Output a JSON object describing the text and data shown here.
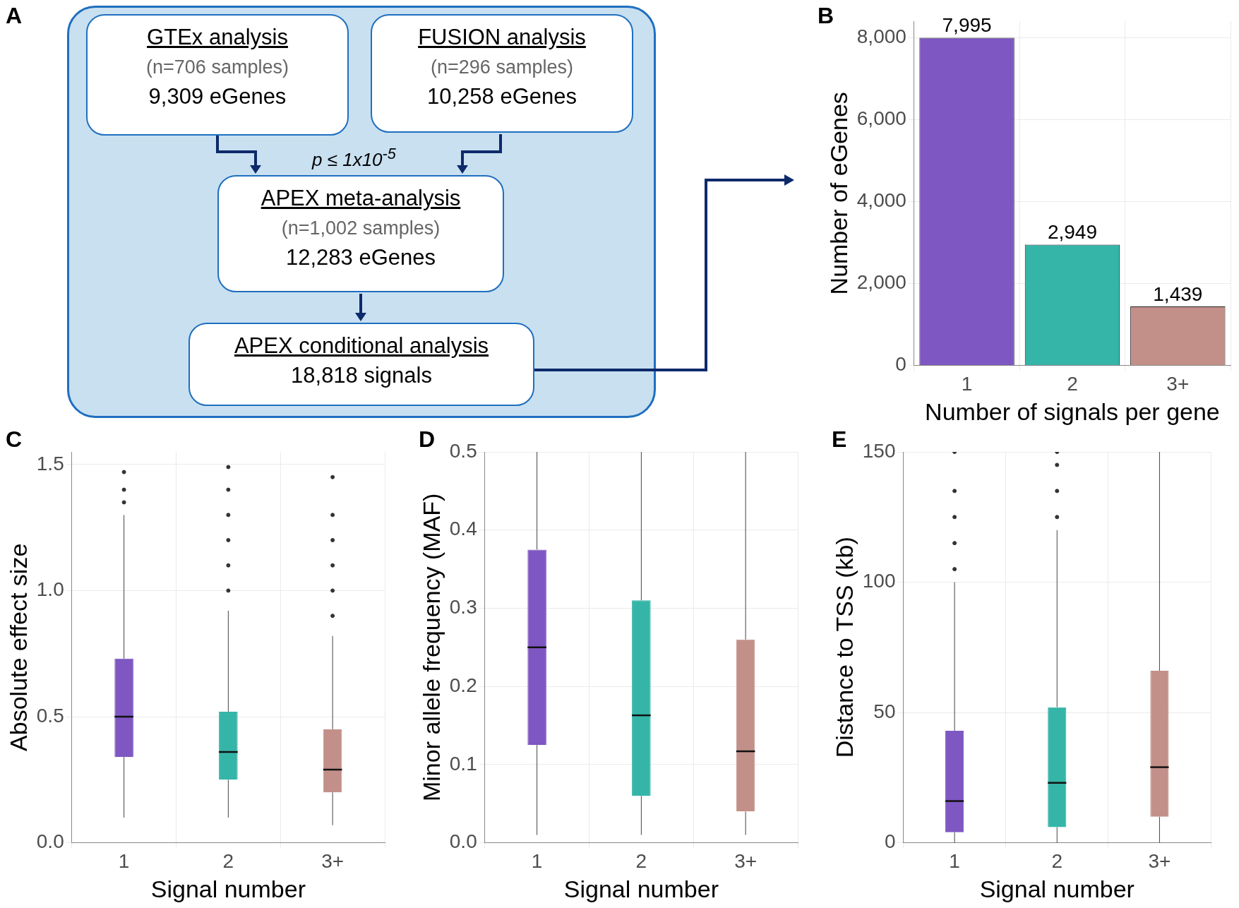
{
  "chart_data": [
    {
      "type": "other",
      "title": "A",
      "annotations": [
        "GTEx analysis",
        "(n=706 samples)",
        "9,309 eGenes",
        "FUSION analysis",
        "(n=296 samples)",
        "10,258 eGenes",
        "p ≤ 1x10$^{-5}$",
        "APEX meta-analysis",
        "(n=1,002 samples)",
        "12,283 eGenes",
        "APEX conditional analysis",
        "18,818 signals"
      ]
    },
    {
      "type": "bar",
      "title": "B",
      "categories": [
        "1",
        "2",
        "3+"
      ],
      "values": [
        7995,
        2949,
        1439
      ],
      "colors": [
        "#7e57c2",
        "#35b5a8",
        "#c29089"
      ],
      "value_labels": [
        "7,995",
        "2,949",
        "1,439"
      ],
      "xlabel": "Number of signals per gene",
      "ylabel": "Number of eGenes",
      "ylim": [
        0,
        8400
      ],
      "yticks": [
        0,
        {
          "value": 2000,
          "label": "2,000"
        },
        {
          "value": 4000,
          "label": "4,000"
        },
        {
          "value": 6000,
          "label": "6,000"
        },
        {
          "value": 8000,
          "label": "8,000"
        }
      ],
      "grid": true
    },
    {
      "type": "box",
      "title": "C",
      "categories": [
        "1",
        "2",
        "3+"
      ],
      "colors": [
        "#7e57c2",
        "#35b5a8",
        "#c29089"
      ],
      "xlabel": "Signal number",
      "ylabel": "Absolute effect size",
      "ylim": [
        0,
        1.55
      ],
      "yticks": [
        {
          "value": 0,
          "label": "0.0"
        },
        {
          "value": 0.5,
          "label": "0.5"
        },
        {
          "value": 1,
          "label": "1.0"
        },
        {
          "value": 1.5,
          "label": "1.5"
        }
      ],
      "grid": true,
      "boxes": [
        {
          "low": 0.1,
          "q1": 0.34,
          "median": 0.5,
          "q3": 0.73,
          "high": 1.3,
          "outliers": [
            1.35,
            1.4,
            1.47
          ]
        },
        {
          "low": 0.1,
          "q1": 0.25,
          "median": 0.36,
          "q3": 0.52,
          "high": 0.92,
          "outliers": [
            1.0,
            1.1,
            1.2,
            1.3,
            1.4,
            1.49
          ]
        },
        {
          "low": 0.07,
          "q1": 0.2,
          "median": 0.29,
          "q3": 0.45,
          "high": 0.82,
          "outliers": [
            0.9,
            1.0,
            1.1,
            1.2,
            1.3,
            1.45
          ]
        }
      ]
    },
    {
      "type": "box",
      "title": "D",
      "categories": [
        "1",
        "2",
        "3+"
      ],
      "colors": [
        "#7e57c2",
        "#35b5a8",
        "#c29089"
      ],
      "xlabel": "Signal number",
      "ylabel": "Minor allele frequency (MAF)",
      "ylim": [
        0,
        0.5
      ],
      "yticks": [
        {
          "value": 0,
          "label": "0.0"
        },
        0.1,
        0.2,
        0.3,
        0.4,
        0.5
      ],
      "grid": true,
      "boxes": [
        {
          "low": 0.01,
          "q1": 0.125,
          "median": 0.25,
          "q3": 0.375,
          "high": 0.5
        },
        {
          "low": 0.01,
          "q1": 0.06,
          "median": 0.163,
          "q3": 0.31,
          "high": 0.5
        },
        {
          "low": 0.01,
          "q1": 0.04,
          "median": 0.117,
          "q3": 0.26,
          "high": 0.5
        }
      ]
    },
    {
      "type": "box",
      "title": "E",
      "categories": [
        "1",
        "2",
        "3+"
      ],
      "colors": [
        "#7e57c2",
        "#35b5a8",
        "#c29089"
      ],
      "xlabel": "Signal number",
      "ylabel": "Distance to TSS (kb)",
      "ylim": [
        0,
        150
      ],
      "yticks": [
        0,
        50,
        100,
        150
      ],
      "grid": true,
      "boxes": [
        {
          "low": 0,
          "q1": 4,
          "median": 16,
          "q3": 43,
          "high": 100,
          "outliers": [
            105,
            115,
            125,
            135,
            150
          ]
        },
        {
          "low": 0,
          "q1": 6,
          "median": 23,
          "q3": 52,
          "high": 120,
          "outliers": [
            125,
            135,
            145,
            150
          ]
        },
        {
          "low": 0,
          "q1": 10,
          "median": 29,
          "q3": 66,
          "high": 150
        }
      ]
    }
  ]
}
